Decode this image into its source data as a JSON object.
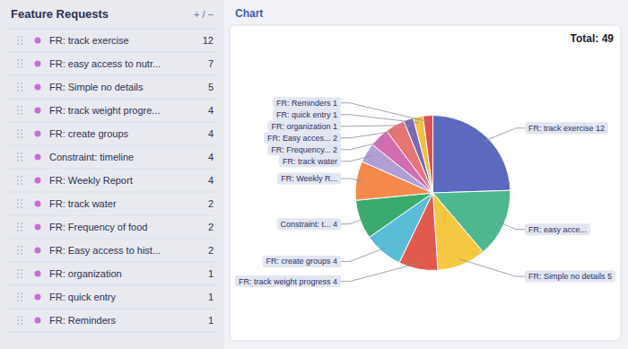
{
  "chart_data": [
    {
      "type": "list",
      "title": "Feature Requests",
      "annotations": [
        "+ / −"
      ],
      "categories": [
        "FR: track exercise",
        "FR: easy access to nutr...",
        "FR: Simple no details",
        "FR: track weight progre...",
        "FR: create groups",
        "Constraint: timeline",
        "FR: Weekly Report",
        "FR: track water",
        "FR: Frequency of food",
        "FR: Easy access to hist...",
        "FR: organization",
        "FR: quick entry",
        "FR: Reminders"
      ],
      "values": [
        12,
        7,
        5,
        4,
        4,
        4,
        4,
        2,
        2,
        2,
        1,
        1,
        1
      ],
      "color": "#c86dd7"
    },
    {
      "type": "pie",
      "title": "Chart",
      "subtitle": "Total: 49",
      "values": [
        12,
        7,
        5,
        4,
        4,
        4,
        4,
        2,
        2,
        2,
        1,
        1,
        1
      ],
      "colors": [
        "#5b6abf",
        "#4db890",
        "#f5c842",
        "#e05a4e",
        "#5bbcd6",
        "#3aab6d",
        "#f4894b",
        "#b09ed4",
        "#d46db0",
        "#e87575",
        "#7b68b5",
        "#f0c040",
        "#e05050"
      ],
      "annotations": [
        "FR: track exercise 12",
        "FR: easy acce...",
        "FR: Simple no details 5",
        "FR: track weight progress 4",
        "FR: create groups 4",
        "Constraint: t... 4",
        "FR: Weekly R...",
        "FR: track water",
        "FR: Frequency... 2",
        "FR: Easy acces... 2",
        "FR: organization 1",
        "FR: quick entry 1",
        "FR: Reminders 1"
      ]
    }
  ]
}
